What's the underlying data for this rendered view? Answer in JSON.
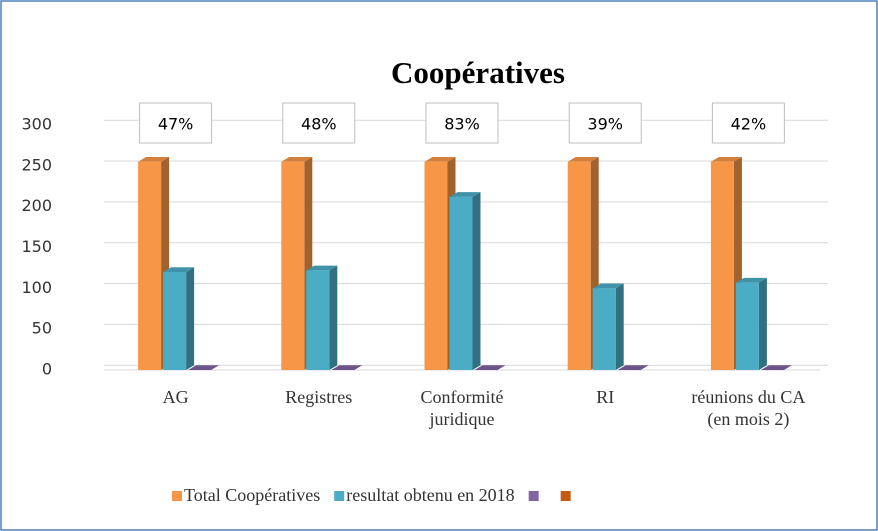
{
  "chart_data": {
    "type": "bar3d",
    "title": "Coopératives",
    "categories": [
      "AG",
      "Registres",
      "Conformité juridique",
      "RI",
      "réunions du CA (en mois 2)"
    ],
    "annotations": [
      "47%",
      "48%",
      "83%",
      "39%",
      "42%"
    ],
    "series": [
      {
        "name": "Total Coopératives",
        "color": "#f79646",
        "values": [
          255,
          255,
          255,
          255,
          255
        ]
      },
      {
        "name": "resultat obtenu en 2018",
        "color": "#4bacc6",
        "values": [
          120,
          122,
          212,
          100,
          107
        ]
      },
      {
        "color": "#8064a2",
        "values": [
          0,
          0,
          0,
          0,
          0
        ]
      },
      {
        "color": "#c55a11",
        "values": [
          null,
          null,
          null,
          null,
          null
        ]
      }
    ],
    "ylim": [
      0,
      300
    ],
    "yticks": [
      0,
      50,
      100,
      150,
      200,
      250,
      300
    ],
    "grid": true
  }
}
